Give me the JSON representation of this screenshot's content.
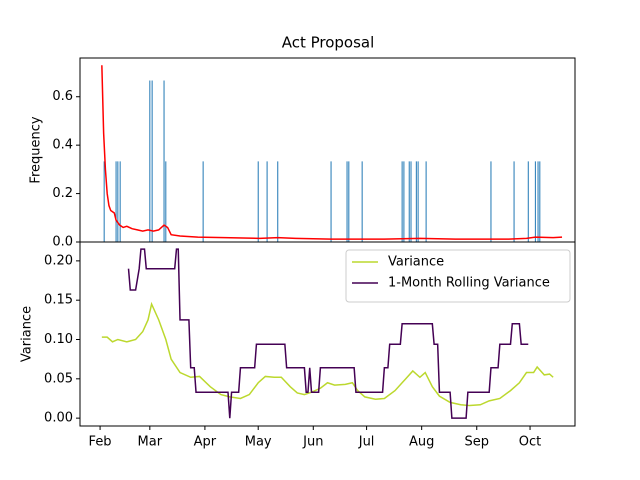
{
  "chart_data": [
    {
      "type": "bar",
      "title": "Act Proposal",
      "ylabel": "Frequency",
      "color": "#1f77b4",
      "x": [
        2.3,
        9,
        10,
        11.3,
        28,
        29.3,
        36,
        37,
        58,
        89,
        94,
        100,
        130,
        139,
        140,
        147.5,
        170,
        171,
        174,
        175,
        178,
        179,
        183.5,
        220,
        233,
        241,
        245,
        246.5,
        247.5
      ],
      "values": [
        0.333,
        0.333,
        0.333,
        0.333,
        0.667,
        0.667,
        0.667,
        0.333,
        0.333,
        0.333,
        0.333,
        0.333,
        0.333,
        0.333,
        0.333,
        0.333,
        0.333,
        0.333,
        0.333,
        0.333,
        0.333,
        0.333,
        0.333,
        0.333,
        0.333,
        0.333,
        0.333,
        0.333,
        0.333
      ],
      "series": [
        {
          "color": "#ff0000",
          "x": [
            1,
            2,
            3,
            4,
            5,
            6,
            8,
            9,
            11,
            13,
            15,
            18,
            21,
            24,
            27,
            30,
            33,
            36,
            38,
            40,
            45,
            55,
            70,
            90,
            100,
            110,
            130,
            160,
            180,
            200,
            230,
            240,
            245,
            255,
            260
          ],
          "values": [
            0.73,
            0.45,
            0.3,
            0.2,
            0.15,
            0.13,
            0.12,
            0.09,
            0.07,
            0.06,
            0.065,
            0.055,
            0.05,
            0.045,
            0.05,
            0.045,
            0.05,
            0.07,
            0.06,
            0.03,
            0.025,
            0.02,
            0.018,
            0.015,
            0.018,
            0.015,
            0.012,
            0.012,
            0.015,
            0.012,
            0.012,
            0.015,
            0.02,
            0.018,
            0.02
          ]
        }
      ],
      "xlim": [
        -11.3,
        267.3
      ],
      "ylim": [
        0,
        0.76
      ],
      "yticks": [
        {
          "value": 0,
          "label": "0.0"
        },
        {
          "value": 0.2,
          "label": "0.2"
        },
        {
          "value": 0.4,
          "label": "0.4"
        },
        {
          "value": 0.6,
          "label": "0.6"
        }
      ]
    },
    {
      "type": "line",
      "ylabel": "Variance",
      "legend": "upper right",
      "series": [
        {
          "name": "Variance",
          "color": "#bcd82e",
          "x": [
            1,
            4,
            7,
            10,
            15,
            20,
            24,
            27,
            29,
            33,
            37,
            40,
            45,
            51,
            56,
            62,
            68,
            73,
            79,
            84,
            89,
            93,
            98,
            102,
            107,
            111,
            115,
            119,
            124,
            128,
            132,
            138,
            142,
            145,
            149,
            155,
            160,
            166,
            172,
            176,
            180,
            183,
            187,
            191,
            197,
            203,
            208,
            214,
            219,
            225,
            231,
            236,
            240,
            244,
            246,
            250,
            253,
            255
          ],
          "values": [
            0.103,
            0.103,
            0.097,
            0.1,
            0.097,
            0.1,
            0.11,
            0.125,
            0.145,
            0.125,
            0.1,
            0.075,
            0.058,
            0.052,
            0.053,
            0.04,
            0.03,
            0.027,
            0.025,
            0.03,
            0.045,
            0.053,
            0.052,
            0.052,
            0.04,
            0.032,
            0.03,
            0.033,
            0.038,
            0.045,
            0.042,
            0.043,
            0.045,
            0.035,
            0.027,
            0.024,
            0.025,
            0.035,
            0.05,
            0.06,
            0.052,
            0.058,
            0.04,
            0.028,
            0.02,
            0.017,
            0.016,
            0.017,
            0.022,
            0.025,
            0.035,
            0.045,
            0.058,
            0.058,
            0.065,
            0.055,
            0.056,
            0.052
          ]
        },
        {
          "name": "1-Month Rolling Variance",
          "color": "#440154",
          "x": [
            16,
            17,
            20,
            22,
            23,
            25,
            26,
            42,
            43,
            44,
            45,
            50,
            51,
            53,
            54,
            72,
            73,
            74,
            78,
            79,
            87,
            88,
            104,
            105,
            115,
            116,
            117,
            118,
            119,
            123,
            124,
            143,
            144,
            159,
            160,
            162,
            163,
            169,
            170,
            187,
            188,
            190,
            191,
            197,
            198,
            206,
            207,
            219,
            220,
            224,
            225,
            231,
            232,
            236,
            237,
            241
          ],
          "values": [
            0.19,
            0.163,
            0.163,
            0.19,
            0.215,
            0.215,
            0.19,
            0.19,
            0.215,
            0.215,
            0.125,
            0.125,
            0.064,
            0.064,
            0.033,
            0.033,
            0.0,
            0.033,
            0.033,
            0.064,
            0.064,
            0.094,
            0.094,
            0.064,
            0.064,
            0.033,
            0.033,
            0.064,
            0.033,
            0.033,
            0.064,
            0.064,
            0.033,
            0.033,
            0.064,
            0.064,
            0.094,
            0.094,
            0.12,
            0.12,
            0.094,
            0.094,
            0.033,
            0.033,
            0.0,
            0.0,
            0.033,
            0.033,
            0.064,
            0.064,
            0.094,
            0.094,
            0.12,
            0.12,
            0.094,
            0.094
          ]
        }
      ],
      "xlim": [
        -11.3,
        267.3
      ],
      "ylim": [
        -0.01,
        0.224
      ],
      "xticks": [
        {
          "value": 0,
          "label": "Feb"
        },
        {
          "value": 28,
          "label": "Mar"
        },
        {
          "value": 59,
          "label": "Apr"
        },
        {
          "value": 89,
          "label": "May"
        },
        {
          "value": 120,
          "label": "Jun"
        },
        {
          "value": 150,
          "label": "Jul"
        },
        {
          "value": 181,
          "label": "Aug"
        },
        {
          "value": 212,
          "label": "Sep"
        },
        {
          "value": 242,
          "label": "Oct"
        }
      ],
      "yticks": [
        {
          "value": 0,
          "label": "0.00"
        },
        {
          "value": 0.05,
          "label": "0.05"
        },
        {
          "value": 0.1,
          "label": "0.10"
        },
        {
          "value": 0.15,
          "label": "0.15"
        },
        {
          "value": 0.2,
          "label": "0.20"
        }
      ]
    }
  ]
}
